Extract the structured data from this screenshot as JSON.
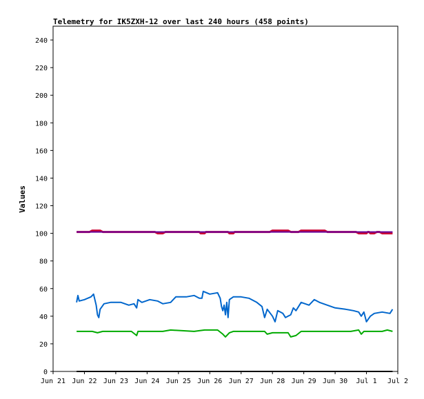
{
  "chart_data": {
    "type": "line",
    "title": "Telemetry for IK5ZXH-12 over last 240 hours (458 points)",
    "xlabel": "",
    "ylabel": "Values",
    "ylim": [
      0,
      250
    ],
    "yticks": [
      0,
      20,
      40,
      60,
      80,
      100,
      120,
      140,
      160,
      180,
      200,
      220,
      240
    ],
    "xlim": [
      "2024-06-21",
      "2024-07-02"
    ],
    "xticks": [
      {
        "date": "2024-06-21",
        "label": "Jun 21"
      },
      {
        "date": "2024-06-22",
        "label": "Jun 22"
      },
      {
        "date": "2024-06-23",
        "label": "Jun 23"
      },
      {
        "date": "2024-06-24",
        "label": "Jun 24"
      },
      {
        "date": "2024-06-25",
        "label": "Jun 25"
      },
      {
        "date": "2024-06-26",
        "label": "Jun 26"
      },
      {
        "date": "2024-06-27",
        "label": "Jun 27"
      },
      {
        "date": "2024-06-28",
        "label": "Jun 28"
      },
      {
        "date": "2024-06-29",
        "label": "Jun 29"
      },
      {
        "date": "2024-06-30",
        "label": "Jun 30"
      },
      {
        "date": "2024-07-01",
        "label": "Jul 1"
      },
      {
        "date": "2024-07-02",
        "label": "Jul 2"
      }
    ],
    "grid": false,
    "series": [
      {
        "color": "#0066cc",
        "points": [
          [
            "2024-06-21 18:00",
            50
          ],
          [
            "2024-06-21 19:00",
            55
          ],
          [
            "2024-06-21 20:00",
            51
          ],
          [
            "2024-06-22 00:00",
            52
          ],
          [
            "2024-06-22 05:00",
            54
          ],
          [
            "2024-06-22 07:00",
            56
          ],
          [
            "2024-06-22 09:00",
            48
          ],
          [
            "2024-06-22 10:00",
            41
          ],
          [
            "2024-06-22 11:00",
            39
          ],
          [
            "2024-06-22 12:00",
            45
          ],
          [
            "2024-06-22 15:00",
            49
          ],
          [
            "2024-06-22 20:00",
            50
          ],
          [
            "2024-06-23 04:00",
            50
          ],
          [
            "2024-06-23 10:00",
            48
          ],
          [
            "2024-06-23 14:00",
            49
          ],
          [
            "2024-06-23 16:00",
            46
          ],
          [
            "2024-06-23 17:00",
            52
          ],
          [
            "2024-06-23 20:00",
            50
          ],
          [
            "2024-06-24 02:00",
            52
          ],
          [
            "2024-06-24 08:00",
            51
          ],
          [
            "2024-06-24 12:00",
            49
          ],
          [
            "2024-06-24 18:00",
            50
          ],
          [
            "2024-06-24 22:00",
            54
          ],
          [
            "2024-06-25 06:00",
            54
          ],
          [
            "2024-06-25 12:00",
            55
          ],
          [
            "2024-06-25 16:00",
            53
          ],
          [
            "2024-06-25 18:00",
            53
          ],
          [
            "2024-06-25 19:00",
            58
          ],
          [
            "2024-06-26 00:00",
            56
          ],
          [
            "2024-06-26 06:00",
            57
          ],
          [
            "2024-06-26 08:00",
            53
          ],
          [
            "2024-06-26 09:00",
            47
          ],
          [
            "2024-06-26 10:00",
            44
          ],
          [
            "2024-06-26 11:00",
            48
          ],
          [
            "2024-06-26 12:00",
            41
          ],
          [
            "2024-06-26 13:00",
            50
          ],
          [
            "2024-06-26 14:00",
            39
          ],
          [
            "2024-06-26 15:00",
            52
          ],
          [
            "2024-06-26 18:00",
            54
          ],
          [
            "2024-06-27 00:00",
            54
          ],
          [
            "2024-06-27 06:00",
            53
          ],
          [
            "2024-06-27 12:00",
            50
          ],
          [
            "2024-06-27 16:00",
            47
          ],
          [
            "2024-06-27 18:00",
            39
          ],
          [
            "2024-06-27 20:00",
            45
          ],
          [
            "2024-06-28 00:00",
            40
          ],
          [
            "2024-06-28 02:00",
            36
          ],
          [
            "2024-06-28 04:00",
            44
          ],
          [
            "2024-06-28 08:00",
            42
          ],
          [
            "2024-06-28 10:00",
            39
          ],
          [
            "2024-06-28 14:00",
            41
          ],
          [
            "2024-06-28 16:00",
            46
          ],
          [
            "2024-06-28 18:00",
            44
          ],
          [
            "2024-06-28 22:00",
            50
          ],
          [
            "2024-06-29 04:00",
            48
          ],
          [
            "2024-06-29 08:00",
            52
          ],
          [
            "2024-06-29 12:00",
            50
          ],
          [
            "2024-06-29 18:00",
            48
          ],
          [
            "2024-06-30 00:00",
            46
          ],
          [
            "2024-06-30 08:00",
            45
          ],
          [
            "2024-06-30 14:00",
            44
          ],
          [
            "2024-06-30 18:00",
            43
          ],
          [
            "2024-06-30 20:00",
            40
          ],
          [
            "2024-06-30 22:00",
            43
          ],
          [
            "2024-07-01 00:00",
            36
          ],
          [
            "2024-07-01 03:00",
            40
          ],
          [
            "2024-07-01 06:00",
            42
          ],
          [
            "2024-07-01 12:00",
            43
          ],
          [
            "2024-07-01 18:00",
            42
          ],
          [
            "2024-07-01 20:00",
            45
          ]
        ]
      },
      {
        "color": "#00aa00",
        "points": [
          [
            "2024-06-21 18:00",
            29
          ],
          [
            "2024-06-22 06:00",
            29
          ],
          [
            "2024-06-22 10:00",
            28
          ],
          [
            "2024-06-22 14:00",
            29
          ],
          [
            "2024-06-23 12:00",
            29
          ],
          [
            "2024-06-23 16:00",
            26
          ],
          [
            "2024-06-23 17:00",
            29
          ],
          [
            "2024-06-24 12:00",
            29
          ],
          [
            "2024-06-24 18:00",
            30
          ],
          [
            "2024-06-25 12:00",
            29
          ],
          [
            "2024-06-25 20:00",
            30
          ],
          [
            "2024-06-26 06:00",
            30
          ],
          [
            "2024-06-26 10:00",
            27
          ],
          [
            "2024-06-26 12:00",
            25
          ],
          [
            "2024-06-26 15:00",
            28
          ],
          [
            "2024-06-26 18:00",
            29
          ],
          [
            "2024-06-27 18:00",
            29
          ],
          [
            "2024-06-27 20:00",
            27
          ],
          [
            "2024-06-28 00:00",
            28
          ],
          [
            "2024-06-28 12:00",
            28
          ],
          [
            "2024-06-28 14:00",
            25
          ],
          [
            "2024-06-28 18:00",
            26
          ],
          [
            "2024-06-28 22:00",
            29
          ],
          [
            "2024-06-29 12:00",
            29
          ],
          [
            "2024-06-30 12:00",
            29
          ],
          [
            "2024-06-30 18:00",
            30
          ],
          [
            "2024-06-30 20:00",
            27
          ],
          [
            "2024-06-30 22:00",
            29
          ],
          [
            "2024-07-01 12:00",
            29
          ],
          [
            "2024-07-01 16:00",
            30
          ],
          [
            "2024-07-01 20:00",
            29
          ]
        ]
      },
      {
        "color": "#cc0033",
        "points": [
          [
            "2024-06-21 18:00",
            101
          ],
          [
            "2024-06-22 04:00",
            101
          ],
          [
            "2024-06-22 06:00",
            102
          ],
          [
            "2024-06-22 12:00",
            102
          ],
          [
            "2024-06-22 14:00",
            101
          ],
          [
            "2024-06-24 06:00",
            101
          ],
          [
            "2024-06-24 08:00",
            100
          ],
          [
            "2024-06-24 12:00",
            100
          ],
          [
            "2024-06-24 14:00",
            101
          ],
          [
            "2024-06-25 16:00",
            101
          ],
          [
            "2024-06-25 17:00",
            100
          ],
          [
            "2024-06-25 20:00",
            100
          ],
          [
            "2024-06-25 21:00",
            101
          ],
          [
            "2024-06-26 14:00",
            101
          ],
          [
            "2024-06-26 15:00",
            100
          ],
          [
            "2024-06-26 18:00",
            100
          ],
          [
            "2024-06-26 19:00",
            101
          ],
          [
            "2024-06-27 22:00",
            101
          ],
          [
            "2024-06-28 00:00",
            102
          ],
          [
            "2024-06-28 12:00",
            102
          ],
          [
            "2024-06-28 14:00",
            101
          ],
          [
            "2024-06-28 20:00",
            101
          ],
          [
            "2024-06-28 22:00",
            102
          ],
          [
            "2024-06-29 16:00",
            102
          ],
          [
            "2024-06-29 18:00",
            101
          ],
          [
            "2024-06-30 16:00",
            101
          ],
          [
            "2024-06-30 18:00",
            100
          ],
          [
            "2024-07-01 00:00",
            100
          ],
          [
            "2024-07-01 01:00",
            101
          ],
          [
            "2024-07-01 02:00",
            101
          ],
          [
            "2024-07-01 03:00",
            100
          ],
          [
            "2024-07-01 06:00",
            100
          ],
          [
            "2024-07-01 08:00",
            101
          ],
          [
            "2024-07-01 10:00",
            101
          ],
          [
            "2024-07-01 12:00",
            100
          ],
          [
            "2024-07-01 20:00",
            100
          ]
        ]
      },
      {
        "color": "#660099",
        "points": [
          [
            "2024-06-21 18:00",
            101
          ],
          [
            "2024-07-01 20:00",
            101
          ]
        ]
      },
      {
        "color": "#000000",
        "points": [
          [
            "2024-06-21 18:00",
            0
          ],
          [
            "2024-07-01 20:00",
            0
          ]
        ]
      }
    ]
  }
}
